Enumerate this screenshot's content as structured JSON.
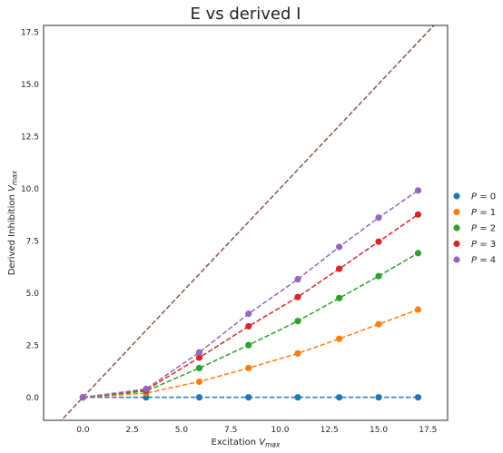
{
  "chart_data": {
    "type": "scatter",
    "title": "E vs derived I",
    "xlabel": {
      "main": "Excitation ",
      "var": "V",
      "sub": "max"
    },
    "ylabel": {
      "main": "Derived Inhibition ",
      "var": "V",
      "sub": "max"
    },
    "xlim": [
      -2,
      18.5
    ],
    "ylim": [
      -1.1,
      17.8
    ],
    "xticks": [
      0.0,
      2.5,
      5.0,
      7.5,
      10.0,
      12.5,
      15.0,
      17.5
    ],
    "xtick_labels": [
      "0.0",
      "2.5",
      "5.0",
      "7.5",
      "10.0",
      "12.5",
      "15.0",
      "17.5"
    ],
    "yticks": [
      0.0,
      2.5,
      5.0,
      7.5,
      10.0,
      12.5,
      15.0,
      17.5
    ],
    "ytick_labels": [
      "0.0",
      "2.5",
      "5.0",
      "7.5",
      "10.0",
      "12.5",
      "15.0",
      "17.5"
    ],
    "grid": false,
    "legend_position": "right, outside plot",
    "x": [
      0.0,
      3.2,
      5.9,
      8.4,
      10.9,
      13.0,
      15.0,
      17.0
    ],
    "series": [
      {
        "name": "P = 0",
        "label_var": "P",
        "label_rest": " = 0",
        "color": "#1f77b4",
        "values": [
          0.0,
          0.0,
          0.0,
          0.0,
          0.0,
          0.0,
          0.0,
          0.0
        ]
      },
      {
        "name": "P = 1",
        "label_var": "P",
        "label_rest": " = 1",
        "color": "#ff7f0e",
        "values": [
          0.0,
          0.2,
          0.75,
          1.4,
          2.1,
          2.8,
          3.5,
          4.2
        ]
      },
      {
        "name": "P = 2",
        "label_var": "P",
        "label_rest": " = 2",
        "color": "#2ca02c",
        "values": [
          0.0,
          0.3,
          1.4,
          2.5,
          3.65,
          4.75,
          5.8,
          6.9
        ]
      },
      {
        "name": "P = 3",
        "label_var": "P",
        "label_rest": " = 3",
        "color": "#d62728",
        "values": [
          0.0,
          0.35,
          1.9,
          3.4,
          4.8,
          6.15,
          7.45,
          8.75
        ]
      },
      {
        "name": "P = 4",
        "label_var": "P",
        "label_rest": " = 4",
        "color": "#9467bd",
        "values": [
          0.0,
          0.4,
          2.15,
          4.0,
          5.65,
          7.2,
          8.6,
          9.9
        ]
      }
    ],
    "reference_line": {
      "slope": 1,
      "intercept": 0,
      "color": "#8c564b",
      "style": "dashed"
    }
  }
}
